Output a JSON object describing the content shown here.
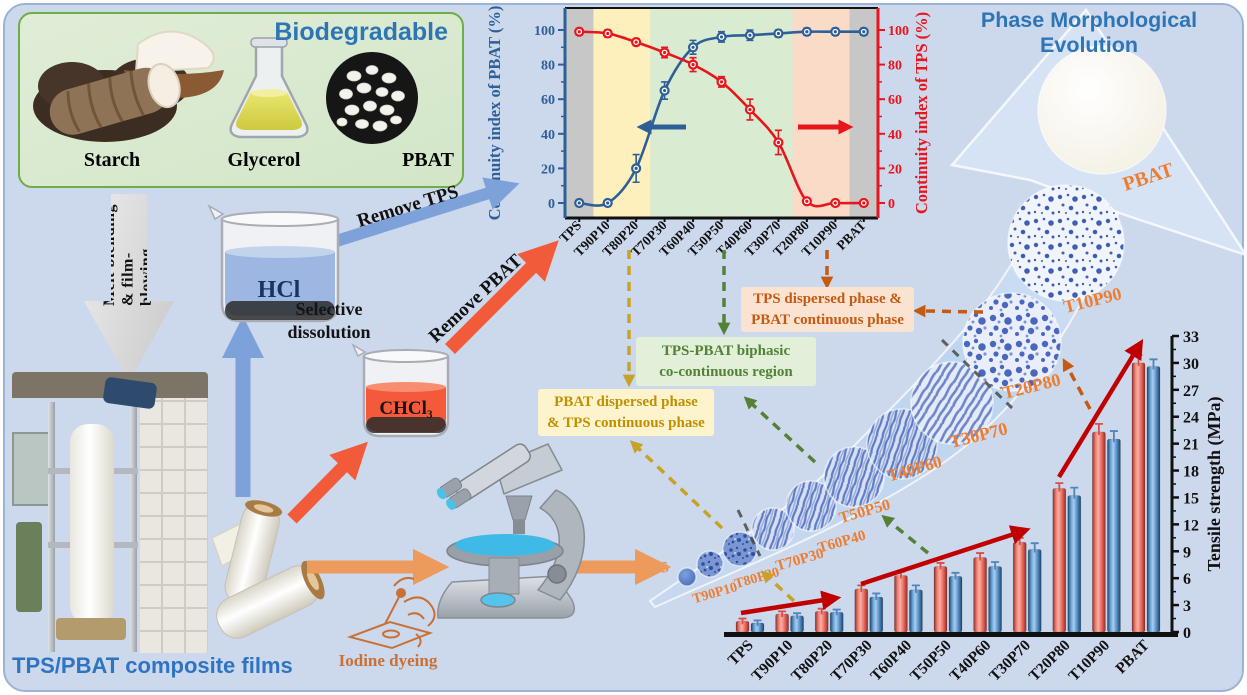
{
  "biodegradable": {
    "title": "Biodegradable",
    "items": [
      {
        "label": "Starch"
      },
      {
        "label": "Glycerol"
      },
      {
        "label": "PBAT"
      }
    ]
  },
  "process": {
    "melt_line1": "Melt blending",
    "melt_line2": "& film-blowing",
    "films_caption": "TPS/PBAT composite films",
    "selective_line1": "Selective",
    "selective_line2": "dissolution",
    "hcl_label": "HCl",
    "chcl3_label": "CHCl₃",
    "remove_tps": "Remove TPS",
    "remove_pbat": "Remove PBAT",
    "iodine_label": "Iodine dyeing"
  },
  "phase": {
    "title": "Phase Morphological Evolution",
    "stages": [
      "TPS",
      "T90P10",
      "T80P20",
      "T70P30",
      "T60P40",
      "T50P50",
      "T40P60",
      "T30P70",
      "T20P80",
      "T10P90",
      "PBAT"
    ]
  },
  "annotations": {
    "pbat_dispersed": {
      "line1": "PBAT dispersed phase",
      "line2": "& TPS continuous phase"
    },
    "cocontinuous": {
      "line1": "TPS-PBAT biphasic",
      "line2": "co-continuous region"
    },
    "tps_dispersed": {
      "line1": "TPS dispersed phase &",
      "line2": "PBAT continuous phase"
    }
  },
  "chart_data": [
    {
      "type": "line",
      "title": "",
      "categories": [
        "TPS",
        "T90P10",
        "T80P20",
        "T70P30",
        "T60P40",
        "T50P50",
        "T40P60",
        "T30P70",
        "T20P80",
        "T10P90",
        "PBAT"
      ],
      "series": [
        {
          "name": "Continuity index of PBAT (%)",
          "axis": "left",
          "color": "#2e5f98",
          "values": [
            0,
            0,
            20,
            65,
            90,
            96,
            97,
            98,
            99,
            99,
            99
          ],
          "errors": [
            1,
            1,
            8,
            5,
            4,
            3,
            3,
            2,
            2,
            2,
            2
          ]
        },
        {
          "name": "Continuity index of TPS (%)",
          "axis": "right",
          "color": "#e8151c",
          "values": [
            99,
            98,
            93,
            87,
            80,
            70,
            54,
            35,
            1,
            0,
            0
          ],
          "errors": [
            2,
            2,
            2,
            3,
            4,
            3,
            6,
            7,
            1,
            1,
            1
          ]
        }
      ],
      "ylabel_left": "Continuity index of PBAT (%)",
      "ylabel_right": "Continuity index of TPS (%)",
      "ylim": [
        0,
        100
      ],
      "yticks": [
        0,
        20,
        40,
        60,
        80,
        100
      ],
      "legend": "none",
      "regions": [
        {
          "from": -0.5,
          "to": 0.5,
          "color": "#c7c7c7"
        },
        {
          "from": 0.5,
          "to": 2.5,
          "color": "#fdf0bd"
        },
        {
          "from": 2.5,
          "to": 7.5,
          "color": "#d9ecd2"
        },
        {
          "from": 7.5,
          "to": 9.5,
          "color": "#fadbc8"
        },
        {
          "from": 9.5,
          "to": 10.5,
          "color": "#c7c7c7"
        }
      ]
    },
    {
      "type": "bar",
      "categories": [
        "TPS",
        "T90P10",
        "T80P20",
        "T70P30",
        "T60P40",
        "T50P50",
        "T40P60",
        "T30P70",
        "T20P80",
        "T10P90",
        "PBAT"
      ],
      "series": [
        {
          "name": "series-red",
          "color": "red",
          "values": [
            1.2,
            2.0,
            2.3,
            4.8,
            6.3,
            7.3,
            8.3,
            10.0,
            16.0,
            22.3,
            30.0
          ],
          "errors": [
            0.3,
            0.3,
            0.3,
            0.4,
            0.4,
            0.4,
            0.5,
            0.5,
            0.6,
            0.9,
            0.9
          ]
        },
        {
          "name": "series-blue",
          "color": "blue",
          "values": [
            1.0,
            1.8,
            2.2,
            3.9,
            4.7,
            6.2,
            7.3,
            9.2,
            15.2,
            21.5,
            29.6
          ],
          "errors": [
            0.3,
            0.3,
            0.3,
            0.4,
            0.5,
            0.4,
            0.5,
            0.7,
            0.9,
            0.9,
            0.8
          ]
        }
      ],
      "ylabel": "Tensile strength (MPa)",
      "ylim": [
        0,
        33
      ],
      "ytick_step": 3,
      "legend": "none"
    }
  ]
}
